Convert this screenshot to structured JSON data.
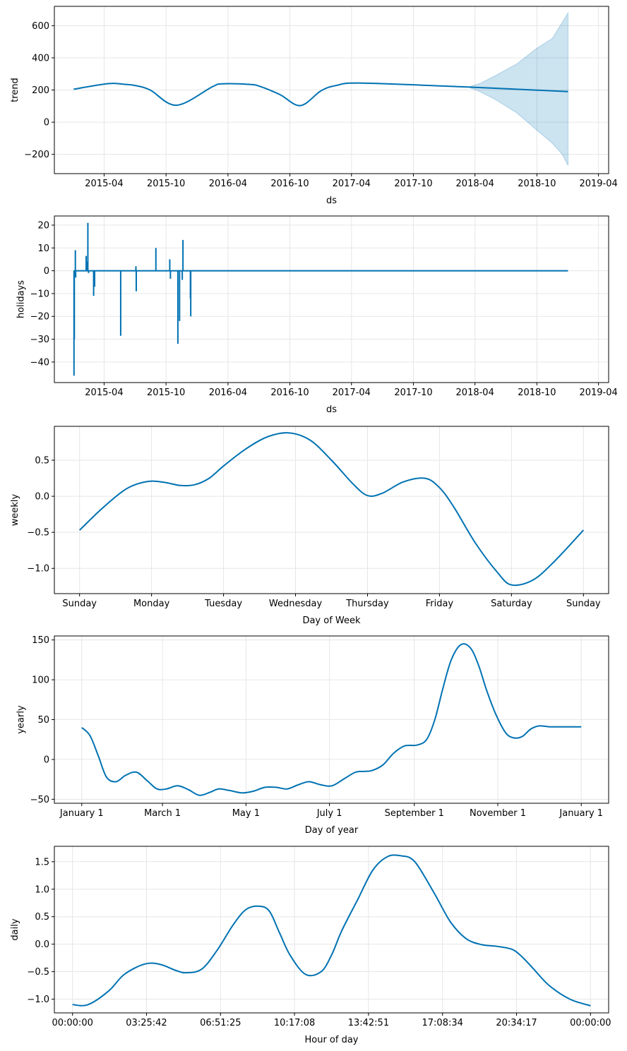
{
  "chart_data": [
    {
      "id": "trend",
      "type": "line",
      "xlabel": "ds",
      "ylabel": "trend",
      "x_type": "date",
      "xlim": [
        "2014-11-05",
        "2019-05-01"
      ],
      "ylim": [
        -320,
        720
      ],
      "x_ticks": [
        "2015-04",
        "2015-10",
        "2016-04",
        "2016-10",
        "2017-04",
        "2017-10",
        "2018-04",
        "2018-10",
        "2019-04"
      ],
      "x_tick_values": [
        "2015-04-01",
        "2015-10-01",
        "2016-04-01",
        "2016-10-01",
        "2017-04-01",
        "2017-10-01",
        "2018-04-01",
        "2018-10-01",
        "2019-04-01"
      ],
      "y_ticks": [
        "600",
        "400",
        "200",
        "0",
        "−200"
      ],
      "y_tick_values": [
        600,
        400,
        200,
        0,
        -200
      ],
      "grid": true,
      "series": [
        {
          "x": [
            "2015-01-01",
            "2015-04-15",
            "2015-06-01",
            "2015-07-01",
            "2015-08-15",
            "2015-11-01",
            "2016-02-15",
            "2016-03-15",
            "2016-06-01",
            "2016-07-01",
            "2016-09-01",
            "2016-11-01",
            "2017-01-01",
            "2017-02-15",
            "2017-05-01",
            "2018-03-15",
            "2019-01-01"
          ],
          "y": [
            205,
            240,
            235,
            228,
            200,
            105,
            220,
            238,
            235,
            225,
            172,
            103,
            195,
            228,
            243,
            218,
            190
          ]
        }
      ],
      "uncertainty_band": {
        "x": [
          "2018-03-15",
          "2018-04-15",
          "2018-06-01",
          "2018-08-01",
          "2018-10-01",
          "2018-11-15",
          "2018-12-15",
          "2019-01-01"
        ],
        "upper": [
          220,
          240,
          290,
          360,
          460,
          520,
          620,
          680
        ],
        "lower": [
          216,
          190,
          140,
          60,
          -50,
          -130,
          -200,
          -270
        ]
      },
      "line_color": "#0072B2",
      "band_color": "#0072B2"
    },
    {
      "id": "holidays",
      "type": "line",
      "xlabel": "ds",
      "ylabel": "holidays",
      "x_type": "date",
      "xlim": [
        "2014-11-05",
        "2019-05-01"
      ],
      "ylim": [
        -49,
        24
      ],
      "x_ticks": [
        "2015-04",
        "2015-10",
        "2016-04",
        "2016-10",
        "2017-04",
        "2017-10",
        "2018-04",
        "2018-10",
        "2019-04"
      ],
      "x_tick_values": [
        "2015-04-01",
        "2015-10-01",
        "2016-04-01",
        "2016-10-01",
        "2017-04-01",
        "2017-10-01",
        "2018-04-01",
        "2018-10-01",
        "2019-04-01"
      ],
      "y_ticks": [
        "20",
        "10",
        "0",
        "−10",
        "−20",
        "−30",
        "−40"
      ],
      "y_tick_values": [
        20,
        10,
        0,
        -10,
        -20,
        -30,
        -40
      ],
      "grid": true,
      "baseline": {
        "x": [
          "2015-01-01",
          "2019-01-01"
        ],
        "y": [
          0,
          0
        ]
      },
      "spikes": [
        {
          "date": "2015-01-02",
          "value": -46
        },
        {
          "date": "2015-01-03",
          "value": -30
        },
        {
          "date": "2015-01-06",
          "value": 9
        },
        {
          "date": "2015-01-07",
          "value": -3
        },
        {
          "date": "2015-02-07",
          "value": 6.5
        },
        {
          "date": "2015-02-09",
          "value": 4
        },
        {
          "date": "2015-02-12",
          "value": 21
        },
        {
          "date": "2015-02-14",
          "value": -1
        },
        {
          "date": "2015-03-01",
          "value": -11
        },
        {
          "date": "2015-03-04",
          "value": -7
        },
        {
          "date": "2015-05-20",
          "value": -28.5
        },
        {
          "date": "2015-07-04",
          "value": 2
        },
        {
          "date": "2015-07-05",
          "value": -9
        },
        {
          "date": "2015-09-01",
          "value": 10
        },
        {
          "date": "2015-10-12",
          "value": 5
        },
        {
          "date": "2015-10-14",
          "value": -3.5
        },
        {
          "date": "2015-11-05",
          "value": -32
        },
        {
          "date": "2015-11-10",
          "value": -22
        },
        {
          "date": "2015-11-18",
          "value": -4
        },
        {
          "date": "2015-11-20",
          "value": 13.5
        },
        {
          "date": "2015-12-12",
          "value": -12
        },
        {
          "date": "2015-12-13",
          "value": -20
        }
      ],
      "line_color": "#0072B2"
    },
    {
      "id": "weekly",
      "type": "line",
      "xlabel": "Day of Week",
      "ylabel": "weekly",
      "xlim": [
        -0.35,
        7.35
      ],
      "ylim": [
        -1.35,
        0.97
      ],
      "x_ticks": [
        "Sunday",
        "Monday",
        "Tuesday",
        "Wednesday",
        "Thursday",
        "Friday",
        "Saturday",
        "Sunday"
      ],
      "x_tick_values": [
        0,
        1,
        2,
        3,
        4,
        5,
        6,
        7
      ],
      "y_ticks": [
        "0.5",
        "0.0",
        "−0.5",
        "−1.0"
      ],
      "y_tick_values": [
        0.5,
        0,
        -0.5,
        -1.0
      ],
      "grid": true,
      "series": [
        {
          "x": [
            0,
            0.3,
            0.6,
            0.8,
            1.0,
            1.2,
            1.4,
            1.6,
            1.8,
            2.0,
            2.3,
            2.6,
            2.9,
            3.2,
            3.5,
            3.8,
            4.0,
            4.2,
            4.5,
            4.8,
            5.0,
            5.2,
            5.5,
            5.8,
            6.0,
            6.3,
            6.6,
            7.0
          ],
          "y": [
            -0.47,
            -0.18,
            0.07,
            0.17,
            0.21,
            0.19,
            0.15,
            0.16,
            0.25,
            0.42,
            0.65,
            0.82,
            0.88,
            0.78,
            0.5,
            0.17,
            0.01,
            0.04,
            0.2,
            0.25,
            0.12,
            -0.15,
            -0.65,
            -1.05,
            -1.23,
            -1.16,
            -0.9,
            -0.47
          ]
        }
      ],
      "line_color": "#0072B2"
    },
    {
      "id": "yearly",
      "type": "line",
      "xlabel": "Day of year",
      "ylabel": "yearly",
      "xlim": [
        -20,
        385
      ],
      "ylim": [
        -55,
        155
      ],
      "x_ticks": [
        "January 1",
        "March 1",
        "May 1",
        "July 1",
        "September 1",
        "November 1",
        "January 1"
      ],
      "x_tick_values": [
        0,
        59,
        120,
        181,
        243,
        304,
        365
      ],
      "y_ticks": [
        "150",
        "100",
        "50",
        "0",
        "−50"
      ],
      "y_tick_values": [
        150,
        100,
        50,
        0,
        -50
      ],
      "grid": true,
      "series": [
        {
          "x": [
            0,
            6,
            12,
            18,
            25,
            32,
            40,
            48,
            55,
            62,
            70,
            78,
            86,
            94,
            100,
            108,
            117,
            125,
            134,
            142,
            150,
            158,
            166,
            175,
            183,
            192,
            200,
            206,
            212,
            220,
            228,
            236,
            245,
            252,
            258,
            264,
            270,
            277,
            284,
            290,
            296,
            303,
            310,
            316,
            322,
            328,
            334,
            342,
            350,
            358,
            365
          ],
          "y": [
            40,
            30,
            5,
            -22,
            -28,
            -20,
            -16,
            -27,
            -37,
            -37,
            -33,
            -38,
            -45,
            -41,
            -37,
            -39,
            -42,
            -40,
            -35,
            -35,
            -37,
            -32,
            -28,
            -32,
            -33,
            -24,
            -16,
            -15,
            -14,
            -7,
            8,
            17,
            18,
            25,
            50,
            90,
            125,
            144,
            140,
            118,
            86,
            55,
            33,
            27,
            29,
            38,
            42,
            41,
            41,
            41,
            41
          ]
        }
      ],
      "line_color": "#0072B2"
    },
    {
      "id": "daily",
      "type": "line",
      "xlabel": "Hour of day",
      "ylabel": "daily",
      "xlim": [
        -0.035,
        1.035
      ],
      "ylim": [
        -1.25,
        1.78
      ],
      "x_ticks": [
        "00:00:00",
        "03:25:42",
        "06:51:25",
        "10:17:08",
        "13:42:51",
        "17:08:34",
        "20:34:17",
        "00:00:00"
      ],
      "x_tick_values": [
        0,
        0.142857,
        0.285714,
        0.428571,
        0.571429,
        0.714286,
        0.857143,
        1.0
      ],
      "y_ticks": [
        "1.5",
        "1.0",
        "0.5",
        "0.0",
        "−0.5",
        "−1.0"
      ],
      "y_tick_values": [
        1.5,
        1.0,
        0.5,
        0,
        -0.5,
        -1.0
      ],
      "grid": true,
      "series": [
        {
          "x": [
            0,
            0.03,
            0.07,
            0.1,
            0.14,
            0.17,
            0.2,
            0.22,
            0.25,
            0.28,
            0.31,
            0.335,
            0.36,
            0.38,
            0.4,
            0.42,
            0.45,
            0.48,
            0.5,
            0.52,
            0.55,
            0.58,
            0.61,
            0.64,
            0.655,
            0.67,
            0.7,
            0.73,
            0.76,
            0.79,
            0.82,
            0.85,
            0.87,
            0.89,
            0.92,
            0.96,
            1.0
          ],
          "y": [
            -1.1,
            -1.1,
            -0.85,
            -0.55,
            -0.36,
            -0.37,
            -0.48,
            -0.52,
            -0.45,
            -0.1,
            0.35,
            0.63,
            0.69,
            0.6,
            0.2,
            -0.2,
            -0.55,
            -0.5,
            -0.2,
            0.25,
            0.8,
            1.35,
            1.6,
            1.6,
            1.55,
            1.38,
            0.9,
            0.4,
            0.1,
            -0.01,
            -0.04,
            -0.1,
            -0.25,
            -0.45,
            -0.75,
            -1.0,
            -1.12
          ]
        }
      ],
      "line_color": "#0072B2"
    }
  ]
}
